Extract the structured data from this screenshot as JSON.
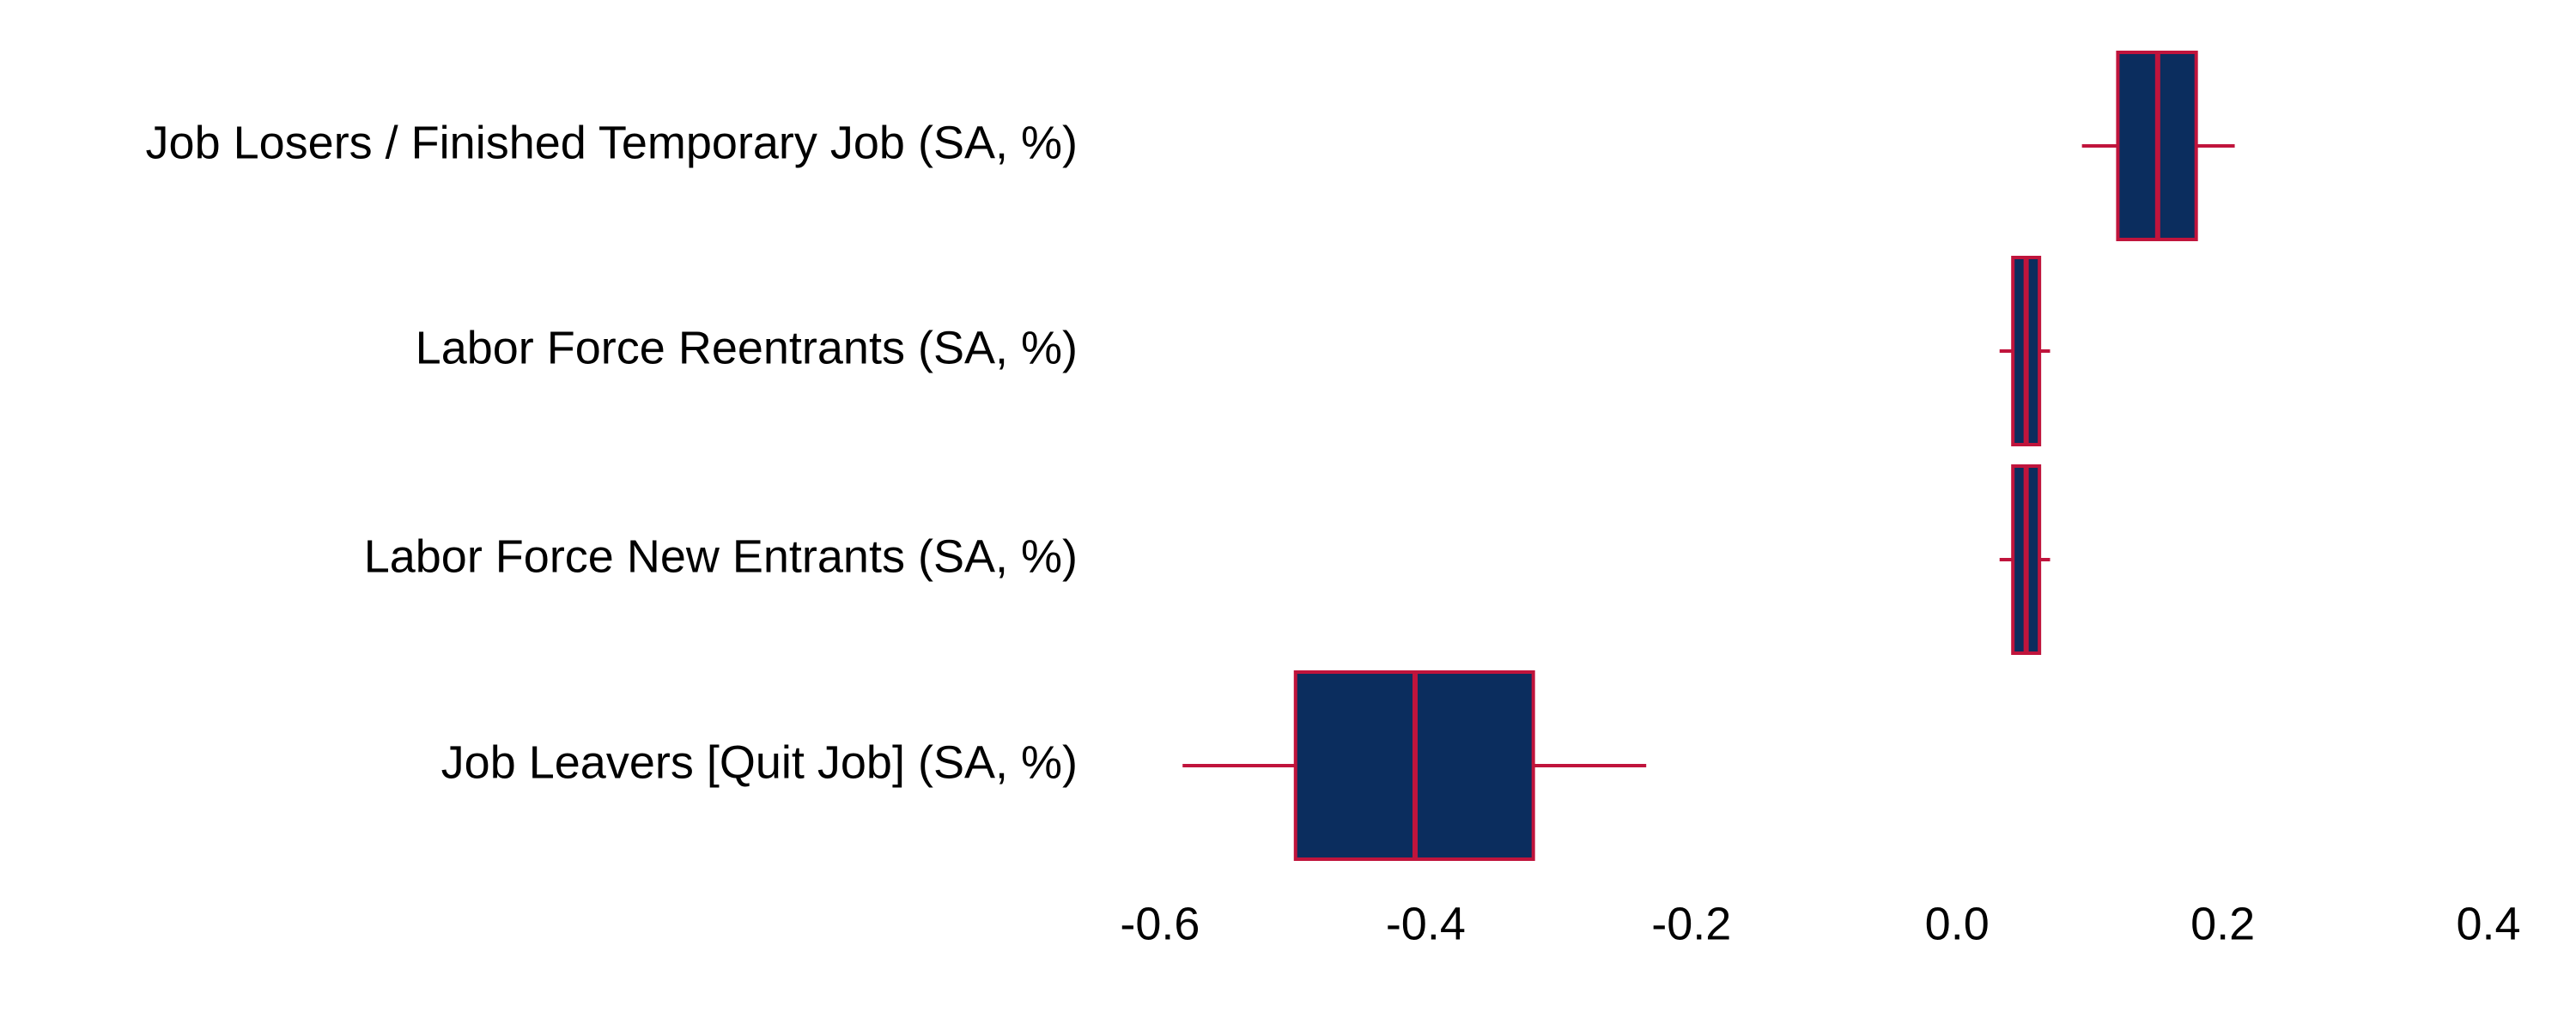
{
  "chart_data": {
    "type": "boxplot",
    "categories": [
      "Job Losers / Finished Temporary Job (SA, %)",
      "Labor Force Reentrants (SA, %)",
      "Labor Force New Entrants (SA, %)",
      "Job Leavers [Quit Job] (SA, %)"
    ],
    "whisker_low": [
      0.094,
      0.032,
      0.032,
      -0.583
    ],
    "q1": [
      0.121,
      0.042,
      0.042,
      -0.498
    ],
    "median": [
      0.151,
      0.052,
      0.052,
      -0.408
    ],
    "q3": [
      0.18,
      0.062,
      0.062,
      -0.319
    ],
    "whisker_high": [
      0.209,
      0.07,
      0.07,
      -0.234
    ],
    "box_color": "#0b2d5e",
    "line_color": "#c0143c",
    "xlim": [
      -0.62,
      0.42
    ],
    "xticks": [
      -0.6,
      -0.4,
      -0.2,
      {
        "value": 0,
        "label": "0.0"
      },
      0.2,
      0.4
    ]
  }
}
